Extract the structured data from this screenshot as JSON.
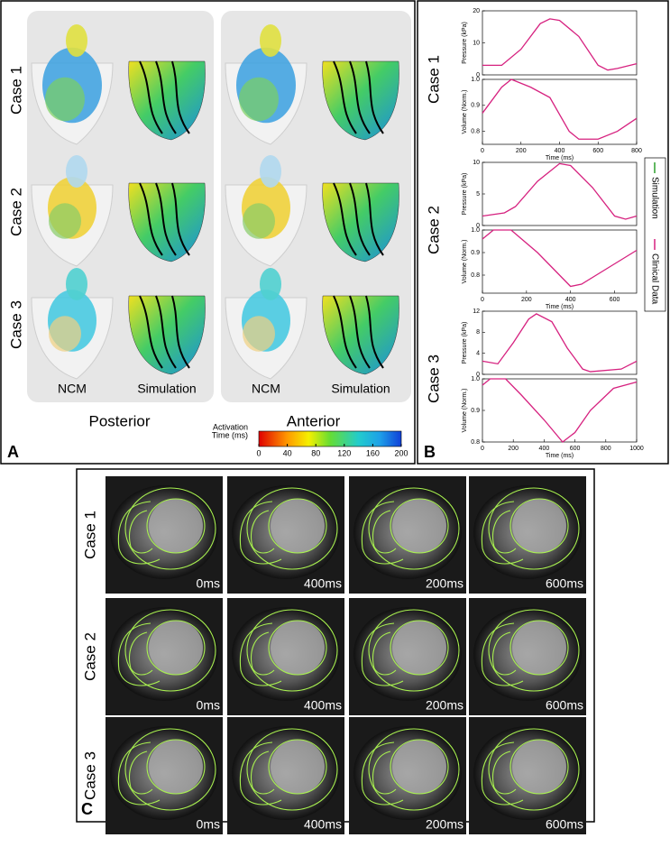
{
  "panel_a": {
    "label": "A",
    "cases": [
      "Case 1",
      "Case 2",
      "Case 3"
    ],
    "views": [
      {
        "title": "Posterior",
        "columns": [
          "NCM",
          "Simulation"
        ]
      },
      {
        "title": "Anterior",
        "columns": [
          "NCM",
          "Simulation"
        ]
      }
    ],
    "colorbar": {
      "title_lines": [
        "Activation",
        "Time (ms)"
      ],
      "ticks": [
        0,
        40,
        80,
        120,
        160,
        200
      ],
      "lim": [
        0,
        200
      ]
    }
  },
  "panel_b": {
    "label": "B",
    "cases": [
      "Case 1",
      "Case 2",
      "Case 3"
    ],
    "legend": [
      {
        "name": "Simulation",
        "color": "#2ca02c"
      },
      {
        "name": "Clinical Data",
        "color": "#d6217f"
      }
    ]
  },
  "chart_data": [
    {
      "type": "line",
      "ylabel": "Pressure (kPa)",
      "x": [
        0,
        100,
        200,
        300,
        350,
        400,
        500,
        600,
        650,
        700,
        800
      ],
      "values": [
        3,
        3,
        8,
        16,
        17.5,
        17,
        12,
        3,
        1.5,
        2,
        3.5
      ],
      "color": "#d6217f",
      "xlim": [
        0,
        800
      ],
      "ylim": [
        0,
        20
      ],
      "yticks": [
        0,
        10,
        20
      ]
    },
    {
      "type": "line",
      "ylabel": "Volume (Norm.)",
      "xlabel": "Time (ms)",
      "x": [
        0,
        100,
        150,
        250,
        350,
        450,
        500,
        600,
        700,
        800
      ],
      "values": [
        0.87,
        0.97,
        1.0,
        0.97,
        0.93,
        0.8,
        0.77,
        0.77,
        0.8,
        0.85
      ],
      "color": "#d6217f",
      "xlim": [
        0,
        800
      ],
      "ylim": [
        0.75,
        1.0
      ],
      "yticks": [
        0.8,
        0.9,
        {
          "value": 1,
          "label": "1.0"
        }
      ],
      "xticks": [
        0,
        200,
        400,
        600,
        800
      ]
    },
    {
      "type": "line",
      "ylabel": "Pressure (kPa)",
      "x": [
        0,
        100,
        150,
        250,
        350,
        400,
        500,
        600,
        650,
        700
      ],
      "values": [
        1.5,
        2,
        3,
        7,
        9.8,
        9.5,
        6,
        1.5,
        1,
        1.5
      ],
      "color": "#d6217f",
      "xlim": [
        0,
        700
      ],
      "ylim": [
        0,
        10
      ],
      "yticks": [
        0,
        5,
        10
      ]
    },
    {
      "type": "line",
      "ylabel": "Volume (Norm.)",
      "xlabel": "Time (ms)",
      "x": [
        0,
        50,
        130,
        250,
        400,
        450,
        550,
        650,
        700
      ],
      "values": [
        0.96,
        1.0,
        1.0,
        0.9,
        0.75,
        0.76,
        0.82,
        0.88,
        0.91
      ],
      "color": "#d6217f",
      "xlim": [
        0,
        700
      ],
      "ylim": [
        0.72,
        1.0
      ],
      "yticks": [
        0.8,
        0.9,
        {
          "value": 1,
          "label": "1.0"
        }
      ],
      "xticks": [
        0,
        200,
        400,
        600
      ]
    },
    {
      "type": "line",
      "ylabel": "Pressure (kPa)",
      "x": [
        0,
        100,
        200,
        300,
        350,
        450,
        550,
        650,
        700,
        900,
        1000
      ],
      "values": [
        2.5,
        2,
        6,
        10.5,
        11.5,
        10,
        5,
        1,
        0.5,
        1,
        2.5
      ],
      "color": "#d6217f",
      "xlim": [
        0,
        1000
      ],
      "ylim": [
        0,
        12
      ],
      "yticks": [
        0,
        4,
        8,
        12
      ]
    },
    {
      "type": "line",
      "ylabel": "Volume (Norm.)",
      "xlabel": "Time (ms)",
      "x": [
        0,
        50,
        150,
        250,
        400,
        520,
        600,
        700,
        850,
        1000
      ],
      "values": [
        0.98,
        1.0,
        1.0,
        0.95,
        0.87,
        0.8,
        0.83,
        0.9,
        0.97,
        0.99
      ],
      "color": "#d6217f",
      "xlim": [
        0,
        1000
      ],
      "ylim": [
        0.8,
        1.0
      ],
      "yticks": [
        0.8,
        0.9,
        {
          "value": 1,
          "label": "1.0"
        }
      ],
      "xticks": [
        0,
        200,
        400,
        600,
        800,
        1000
      ]
    }
  ],
  "panel_c": {
    "label": "C",
    "cases": [
      "Case 1",
      "Case 2",
      "Case 3"
    ],
    "times": [
      "0ms",
      "400ms",
      "200ms",
      "600ms"
    ]
  }
}
